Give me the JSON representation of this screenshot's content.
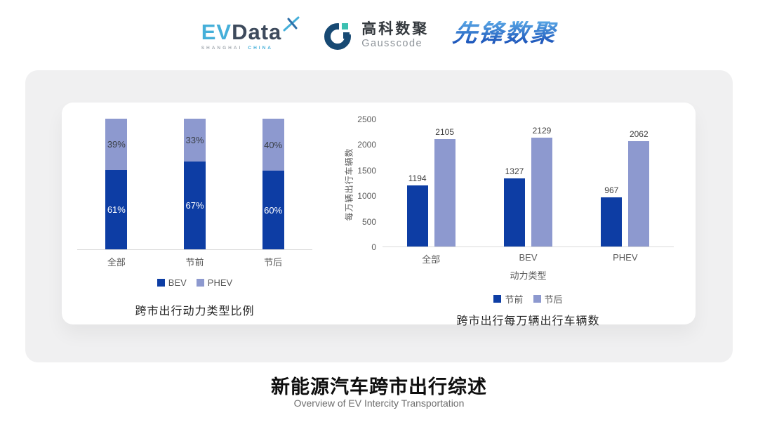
{
  "header": {
    "evdata": {
      "ev": "EV",
      "data": "Data",
      "tagline_left": "SHANGHAI",
      "tagline_right": "CHINA"
    },
    "gausscode": {
      "name_cn": "高科数聚",
      "name_en": "Gausscode"
    },
    "pioneer": {
      "name": "先锋数聚"
    }
  },
  "colors": {
    "primary_dark": "#0D3DA4",
    "primary_light": "#8D99CF",
    "axis_text": "#595959",
    "value_label_text": "#3F3F3F",
    "card_bg": "#F0F0F1",
    "axis_line": "#DADADA"
  },
  "chart_data": [
    {
      "type": "bar",
      "variant": "stacked_percent",
      "title": "跨市出行动力类型比例",
      "categories": [
        "全部",
        "节前",
        "节后"
      ],
      "series": [
        {
          "name": "BEV",
          "values": [
            61,
            67,
            60
          ],
          "labels": [
            "61%",
            "67%",
            "60%"
          ],
          "color": "#0D3DA4",
          "label_color": "#FFFFFF"
        },
        {
          "name": "PHEV",
          "values": [
            39,
            33,
            40
          ],
          "labels": [
            "39%",
            "33%",
            "40%"
          ],
          "color": "#8D99CF",
          "label_color": "#3A3F46"
        }
      ],
      "ylim": [
        0,
        100
      ],
      "grid": false,
      "legend_position": "bottom"
    },
    {
      "type": "bar",
      "variant": "grouped",
      "title": "跨市出行每万辆出行车辆数",
      "categories": [
        "全部",
        "BEV",
        "PHEV"
      ],
      "xlabel": "动力类型",
      "ylabel": "每万辆出行车辆数",
      "ylim": [
        0,
        2500
      ],
      "yticks": [
        0,
        500,
        1000,
        1500,
        2000,
        2500
      ],
      "series": [
        {
          "name": "节前",
          "values": [
            1194,
            1327,
            967
          ],
          "color": "#0D3DA4"
        },
        {
          "name": "节后",
          "values": [
            2105,
            2129,
            2062
          ],
          "color": "#8D99CF"
        }
      ],
      "grid": false,
      "legend_position": "bottom"
    }
  ],
  "footer": {
    "title": "新能源汽车跨市出行综述",
    "subtitle": "Overview of EV Intercity Transportation"
  }
}
